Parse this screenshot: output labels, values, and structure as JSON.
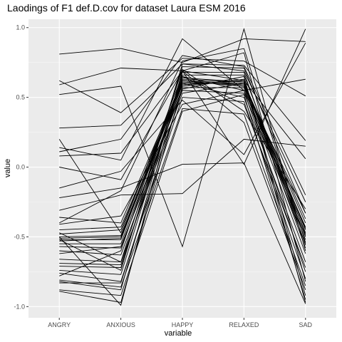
{
  "chart_data": {
    "type": "line",
    "title": "Laodings of F1 def.D.cov for dataset Laura ESM 2016",
    "xlabel": "variable",
    "ylabel": "value",
    "categories": [
      "ANGRY",
      "ANXIOUS",
      "HAPPY",
      "RELAXED",
      "SAD"
    ],
    "ylim": [
      -1.08,
      1.06
    ],
    "yticks": [
      -1.0,
      -0.5,
      0.0,
      0.5,
      1.0
    ],
    "ytick_labels": [
      "-1.0",
      "-0.5",
      "0.0",
      "0.5",
      "1.0"
    ],
    "grid": true,
    "background": "#ebebeb",
    "line_color": "#000000",
    "series": [
      {
        "values": [
          0.81,
          0.85,
          0.75,
          0.92,
          0.9
        ]
      },
      {
        "values": [
          0.59,
          0.71,
          0.69,
          0.82,
          -0.82
        ]
      },
      {
        "values": [
          0.62,
          0.39,
          0.78,
          0.76,
          0.51
        ]
      },
      {
        "values": [
          0.52,
          0.58,
          -0.57,
          0.99,
          -0.6
        ]
      },
      {
        "values": [
          0.28,
          0.3,
          0.74,
          0.73,
          0.19
        ]
      },
      {
        "values": [
          0.14,
          0.05,
          0.92,
          0.55,
          0.63
        ]
      },
      {
        "values": [
          0.11,
          0.2,
          0.8,
          0.72,
          -0.2
        ]
      },
      {
        "values": [
          0.08,
          0.1,
          0.69,
          0.02,
          0.99
        ]
      },
      {
        "values": [
          0.0,
          -0.09,
          0.69,
          0.62,
          0.06
        ]
      },
      {
        "values": [
          -0.15,
          -0.03,
          0.48,
          0.09,
          0.89
        ]
      },
      {
        "values": [
          -0.22,
          -0.15,
          0.02,
          0.03,
          -0.98
        ]
      },
      {
        "values": [
          -0.31,
          -0.2,
          -0.19,
          0.2,
          0.15
        ]
      },
      {
        "values": [
          -0.36,
          -0.4,
          0.62,
          0.58,
          -0.33
        ]
      },
      {
        "values": [
          -0.41,
          -0.35,
          0.45,
          0.55,
          -0.43
        ]
      },
      {
        "values": [
          -0.45,
          -0.43,
          0.6,
          0.6,
          -0.37
        ]
      },
      {
        "values": [
          -0.48,
          -0.45,
          0.62,
          0.6,
          -0.4
        ]
      },
      {
        "values": [
          -0.5,
          -0.49,
          0.63,
          0.61,
          -0.45
        ]
      },
      {
        "values": [
          -0.51,
          -0.5,
          0.61,
          0.59,
          -0.47
        ]
      },
      {
        "values": [
          -0.52,
          -0.52,
          0.64,
          0.61,
          -0.5
        ]
      },
      {
        "values": [
          -0.53,
          -0.51,
          0.6,
          0.6,
          -0.52
        ]
      },
      {
        "values": [
          -0.55,
          -0.55,
          0.62,
          0.58,
          -0.55
        ]
      },
      {
        "values": [
          -0.57,
          -0.58,
          0.59,
          0.62,
          -0.58
        ]
      },
      {
        "values": [
          -0.6,
          -0.63,
          0.57,
          0.57,
          -0.62
        ]
      },
      {
        "values": [
          -0.62,
          -0.57,
          0.55,
          0.53,
          -0.49
        ]
      },
      {
        "values": [
          -0.66,
          -0.68,
          0.53,
          0.6,
          -0.44
        ]
      },
      {
        "values": [
          -0.69,
          -0.7,
          0.6,
          0.5,
          -0.68
        ]
      },
      {
        "values": [
          -0.71,
          -0.72,
          0.65,
          0.45,
          -0.72
        ]
      },
      {
        "values": [
          -0.74,
          -0.77,
          0.65,
          0.55,
          -0.75
        ]
      },
      {
        "values": [
          -0.76,
          -0.82,
          0.5,
          0.47,
          -0.8
        ]
      },
      {
        "values": [
          -0.78,
          -0.6,
          0.7,
          0.4,
          -0.3
        ]
      },
      {
        "values": [
          -0.81,
          -0.86,
          0.42,
          0.38,
          -0.85
        ]
      },
      {
        "values": [
          -0.82,
          -0.88,
          0.69,
          0.32,
          -0.88
        ]
      },
      {
        "values": [
          -0.83,
          -0.83,
          0.56,
          0.65,
          -0.92
        ]
      },
      {
        "values": [
          -0.88,
          -0.92,
          0.4,
          0.52,
          -0.95
        ]
      },
      {
        "values": [
          -0.89,
          -0.97,
          0.58,
          0.63,
          -0.97
        ]
      },
      {
        "values": [
          -0.5,
          -0.99,
          0.68,
          0.68,
          -0.56
        ]
      },
      {
        "values": [
          -0.47,
          -0.68,
          0.72,
          0.71,
          -0.33
        ]
      },
      {
        "values": [
          -0.52,
          -0.74,
          0.74,
          0.69,
          -0.25
        ]
      },
      {
        "values": [
          0.2,
          -0.47,
          0.66,
          0.66,
          -0.48
        ]
      },
      {
        "values": [
          -0.4,
          -0.17,
          0.76,
          0.85,
          -0.54
        ]
      }
    ]
  }
}
